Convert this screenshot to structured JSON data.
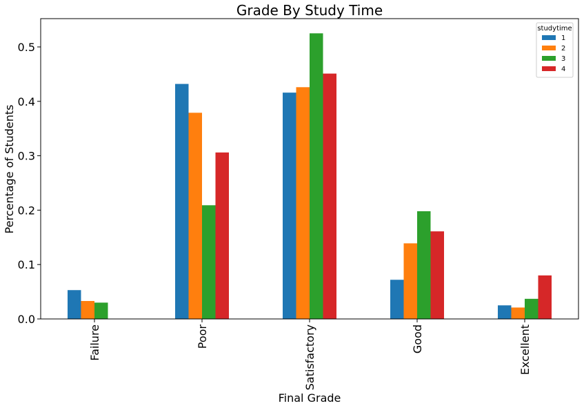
{
  "chart_data": {
    "type": "bar",
    "title": "Grade By Study Time",
    "xlabel": "Final Grade",
    "ylabel": "Percentage of Students",
    "categories": [
      "Failure",
      "Poor",
      "Satisfactory",
      "Good",
      "Excellent"
    ],
    "series": [
      {
        "name": "1",
        "color": "#1f77b4",
        "values": [
          0.053,
          0.432,
          0.416,
          0.072,
          0.025
        ]
      },
      {
        "name": "2",
        "color": "#ff7f0e",
        "values": [
          0.033,
          0.379,
          0.426,
          0.139,
          0.021
        ]
      },
      {
        "name": "3",
        "color": "#2ca02c",
        "values": [
          0.03,
          0.209,
          0.525,
          0.198,
          0.037
        ]
      },
      {
        "name": "4",
        "color": "#d62728",
        "values": [
          0.0,
          0.306,
          0.451,
          0.161,
          0.08
        ]
      }
    ],
    "ylim": [
      0,
      0.552
    ],
    "yticks": [
      0.0,
      0.1,
      0.2,
      0.3,
      0.4,
      0.5
    ],
    "ytick_labels": [
      "0.0",
      "0.1",
      "0.2",
      "0.3",
      "0.4",
      "0.5"
    ],
    "legend": {
      "title": "studytime",
      "placement": "top-right"
    },
    "grid": false
  }
}
